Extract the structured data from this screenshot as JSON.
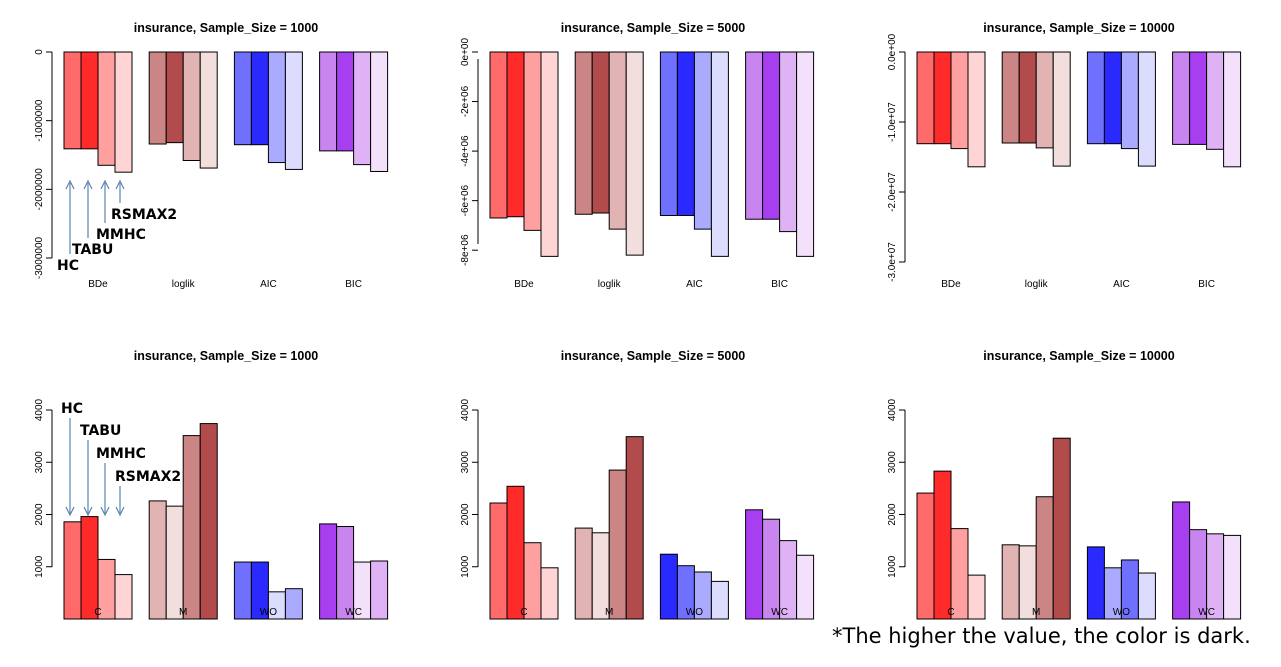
{
  "footnote": "*The higher the value, the color is dark.",
  "annotations": {
    "algorithms": [
      "HC",
      "TABU",
      "MMHC",
      "RSMAX2"
    ],
    "arrow_color": "#5b86b0"
  },
  "palettes": {
    "red": [
      "#ffffff",
      "#ffd4d4",
      "#ffa0a0",
      "#ff6b6b",
      "#ff2a2a"
    ],
    "brown": [
      "#ffffff",
      "#f3dede",
      "#e2b3b3",
      "#cc8585",
      "#b24c4c"
    ],
    "blue": [
      "#ffffff",
      "#dcdcff",
      "#aaaaff",
      "#7070ff",
      "#2a2aff"
    ],
    "purple": [
      "#ffffff",
      "#f3e1fb",
      "#deb2f4",
      "#c884ef",
      "#a73ff0"
    ]
  },
  "chart_data": [
    {
      "type": "bar",
      "title": "insurance, Sample_Size = 1000",
      "categories": [
        "BDe",
        "loglik",
        "AIC",
        "BIC"
      ],
      "series_order": [
        "HC",
        "TABU",
        "MMHC",
        "RSMAX2"
      ],
      "values": [
        [
          -1410000,
          -1410000,
          -1650000,
          -1750000
        ],
        [
          -1340000,
          -1320000,
          -1580000,
          -1690000
        ],
        [
          -1350000,
          -1350000,
          -1610000,
          -1710000
        ],
        [
          -1440000,
          -1440000,
          -1640000,
          -1740000
        ]
      ],
      "shades": [
        [
          3,
          4,
          2,
          1
        ],
        [
          3,
          4,
          2,
          1
        ],
        [
          3,
          4,
          2,
          1
        ],
        [
          3,
          4,
          2,
          1
        ]
      ],
      "palettes": [
        "red",
        "brown",
        "blue",
        "purple"
      ],
      "ylim": [
        -3000000,
        0
      ],
      "yticks": [
        0,
        -1000000,
        -2000000,
        -3000000
      ],
      "ytick_labels": [
        "0",
        "-1000000",
        "-2000000",
        "-3000000"
      ],
      "label_inside": false,
      "annotate": "neg"
    },
    {
      "type": "bar",
      "title": "insurance, Sample_Size = 5000",
      "categories": [
        "BDe",
        "loglik",
        "AIC",
        "BIC"
      ],
      "series_order": [
        "HC",
        "TABU",
        "MMHC",
        "RSMAX2"
      ],
      "values": [
        [
          -6700000,
          -6650000,
          -7200000,
          -8250000
        ],
        [
          -6550000,
          -6500000,
          -7150000,
          -8200000
        ],
        [
          -6600000,
          -6600000,
          -7150000,
          -8250000
        ],
        [
          -6750000,
          -6750000,
          -7250000,
          -8250000
        ]
      ],
      "shades": [
        [
          3,
          4,
          2,
          1
        ],
        [
          3,
          4,
          2,
          1
        ],
        [
          3,
          4,
          2,
          1
        ],
        [
          3,
          4,
          2,
          1
        ]
      ],
      "palettes": [
        "red",
        "brown",
        "blue",
        "purple"
      ],
      "ylim": [
        -8800000,
        0
      ],
      "yticks": [
        0,
        -2000000,
        -4000000,
        -6000000,
        -8000000
      ],
      "ytick_labels": [
        "0e+00",
        "-2e+06",
        "-4e+06",
        "-6e+06",
        "-8e+06"
      ],
      "label_inside": false,
      "annotate": ""
    },
    {
      "type": "bar",
      "title": "insurance, Sample_Size = 10000",
      "categories": [
        "BDe",
        "loglik",
        "AIC",
        "BIC"
      ],
      "series_order": [
        "HC",
        "TABU",
        "MMHC",
        "RSMAX2"
      ],
      "values": [
        [
          -13100000,
          -13100000,
          -13800000,
          -16400000
        ],
        [
          -13000000,
          -13000000,
          -13700000,
          -16300000
        ],
        [
          -13100000,
          -13100000,
          -13800000,
          -16300000
        ],
        [
          -13200000,
          -13200000,
          -13900000,
          -16400000
        ]
      ],
      "shades": [
        [
          3,
          4,
          2,
          1
        ],
        [
          3,
          4,
          2,
          1
        ],
        [
          3,
          4,
          2,
          1
        ],
        [
          3,
          4,
          2,
          1
        ]
      ],
      "palettes": [
        "red",
        "brown",
        "blue",
        "purple"
      ],
      "ylim": [
        -30000000,
        0
      ],
      "yticks": [
        0,
        -10000000,
        -20000000,
        -30000000
      ],
      "ytick_labels": [
        "0.0e+00",
        "-1.0e+07",
        "-2.0e+07",
        "-3.0e+07"
      ],
      "label_inside": false,
      "annotate": ""
    },
    {
      "type": "bar",
      "title": "insurance, Sample_Size = 1000",
      "categories": [
        "C",
        "M",
        "WO",
        "WC"
      ],
      "series_order": [
        "HC",
        "TABU",
        "MMHC",
        "RSMAX2"
      ],
      "values": [
        [
          1860,
          1960,
          1140,
          850
        ],
        [
          2260,
          2160,
          3510,
          3740
        ],
        [
          1090,
          1090,
          520,
          580
        ],
        [
          1820,
          1770,
          1090,
          1110
        ]
      ],
      "shades": [
        [
          3,
          4,
          2,
          1
        ],
        [
          2,
          1,
          3,
          4
        ],
        [
          3,
          4,
          1,
          2
        ],
        [
          4,
          3,
          1,
          2
        ]
      ],
      "palettes": [
        "red",
        "brown",
        "blue",
        "purple"
      ],
      "ylim": [
        0,
        4000
      ],
      "yticks": [
        1000,
        2000,
        3000,
        4000
      ],
      "ytick_labels": [
        "1000",
        "2000",
        "3000",
        "4000"
      ],
      "label_inside": true,
      "annotate": "pos"
    },
    {
      "type": "bar",
      "title": "insurance, Sample_Size = 5000",
      "categories": [
        "C",
        "M",
        "WO",
        "WC"
      ],
      "series_order": [
        "HC",
        "TABU",
        "MMHC",
        "RSMAX2"
      ],
      "values": [
        [
          2220,
          2540,
          1460,
          980
        ],
        [
          1740,
          1650,
          2850,
          3490
        ],
        [
          1240,
          1020,
          900,
          720
        ],
        [
          2090,
          1910,
          1500,
          1220
        ]
      ],
      "shades": [
        [
          3,
          4,
          2,
          1
        ],
        [
          2,
          1,
          3,
          4
        ],
        [
          4,
          3,
          2,
          1
        ],
        [
          4,
          3,
          2,
          1
        ]
      ],
      "palettes": [
        "red",
        "brown",
        "blue",
        "purple"
      ],
      "ylim": [
        0,
        4000
      ],
      "yticks": [
        1000,
        2000,
        3000,
        4000
      ],
      "ytick_labels": [
        "1000",
        "2000",
        "3000",
        "4000"
      ],
      "label_inside": true,
      "annotate": ""
    },
    {
      "type": "bar",
      "title": "insurance, Sample_Size = 10000",
      "categories": [
        "C",
        "M",
        "WO",
        "WC"
      ],
      "series_order": [
        "HC",
        "TABU",
        "MMHC",
        "RSMAX2"
      ],
      "values": [
        [
          2410,
          2830,
          1730,
          840
        ],
        [
          1420,
          1400,
          2340,
          3460
        ],
        [
          1380,
          980,
          1130,
          880
        ],
        [
          2240,
          1710,
          1630,
          1600
        ]
      ],
      "shades": [
        [
          3,
          4,
          2,
          1
        ],
        [
          2,
          1,
          3,
          4
        ],
        [
          4,
          2,
          3,
          1
        ],
        [
          4,
          3,
          2,
          1
        ]
      ],
      "palettes": [
        "red",
        "brown",
        "blue",
        "purple"
      ],
      "ylim": [
        0,
        4000
      ],
      "yticks": [
        1000,
        2000,
        3000,
        4000
      ],
      "ytick_labels": [
        "1000",
        "2000",
        "3000",
        "4000"
      ],
      "label_inside": true,
      "annotate": ""
    }
  ]
}
